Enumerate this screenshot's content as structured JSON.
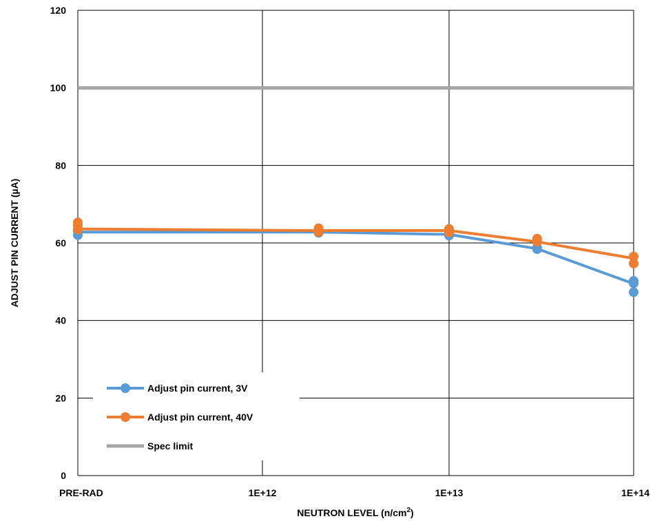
{
  "chart_data": {
    "type": "line",
    "xlabel": "NEUTRON LEVEL (n/cm",
    "xlabel_sup": "2",
    "xlabel_suffix": ")",
    "ylabel": "ADJUST PIN CURRENT (µA)",
    "ylim": [
      0,
      120
    ],
    "yticks": [
      "0",
      "20",
      "40",
      "60",
      "80",
      "100",
      "120"
    ],
    "xticks": [
      "PRE-RAD",
      "1E+12",
      "1E+13",
      "1E+14"
    ],
    "x_scale": "log (decades), with PRE-RAD as leftmost position",
    "grid": true,
    "legend_position": "bottom-left",
    "series": [
      {
        "name": "Adjust pin current, 3V",
        "color": "#5b9bd5",
        "line": [
          {
            "x": "PRE-RAD",
            "y": 62.8
          },
          {
            "x": "2E+12",
            "y": 62.8
          },
          {
            "x": "1E+13",
            "y": 62.2
          },
          {
            "x": "3E+13",
            "y": 58.5
          },
          {
            "x": "1E+14",
            "y": 49.5
          }
        ],
        "points": [
          {
            "x": "PRE-RAD",
            "y": 62.0
          },
          {
            "x": "PRE-RAD",
            "y": 63.0
          },
          {
            "x": "PRE-RAD",
            "y": 63.6
          },
          {
            "x": "2E+12",
            "y": 62.6
          },
          {
            "x": "2E+12",
            "y": 63.2
          },
          {
            "x": "1E+13",
            "y": 61.9
          },
          {
            "x": "1E+13",
            "y": 62.6
          },
          {
            "x": "3E+13",
            "y": 58.4
          },
          {
            "x": "3E+13",
            "y": 58.8
          },
          {
            "x": "1E+14",
            "y": 47.3
          },
          {
            "x": "1E+14",
            "y": 49.6
          },
          {
            "x": "1E+14",
            "y": 50.2
          }
        ]
      },
      {
        "name": "Adjust pin current, 40V",
        "color": "#ed7d31",
        "line": [
          {
            "x": "PRE-RAD",
            "y": 63.6
          },
          {
            "x": "2E+12",
            "y": 63.2
          },
          {
            "x": "1E+13",
            "y": 63.2
          },
          {
            "x": "3E+13",
            "y": 60.3
          },
          {
            "x": "1E+14",
            "y": 56.0
          }
        ],
        "points": [
          {
            "x": "PRE-RAD",
            "y": 65.3
          },
          {
            "x": "PRE-RAD",
            "y": 64.5
          },
          {
            "x": "PRE-RAD",
            "y": 63.5
          },
          {
            "x": "2E+12",
            "y": 63.8
          },
          {
            "x": "2E+12",
            "y": 62.8
          },
          {
            "x": "1E+13",
            "y": 63.6
          },
          {
            "x": "1E+13",
            "y": 62.7
          },
          {
            "x": "3E+13",
            "y": 61.1
          },
          {
            "x": "3E+13",
            "y": 60.3
          },
          {
            "x": "1E+14",
            "y": 56.5
          },
          {
            "x": "1E+14",
            "y": 54.7
          }
        ]
      },
      {
        "name": "Spec limit",
        "color": "#a5a5a5",
        "line": [
          {
            "x": "PRE-RAD",
            "y": 100
          },
          {
            "x": "1E+14",
            "y": 100
          }
        ],
        "points": []
      }
    ]
  }
}
